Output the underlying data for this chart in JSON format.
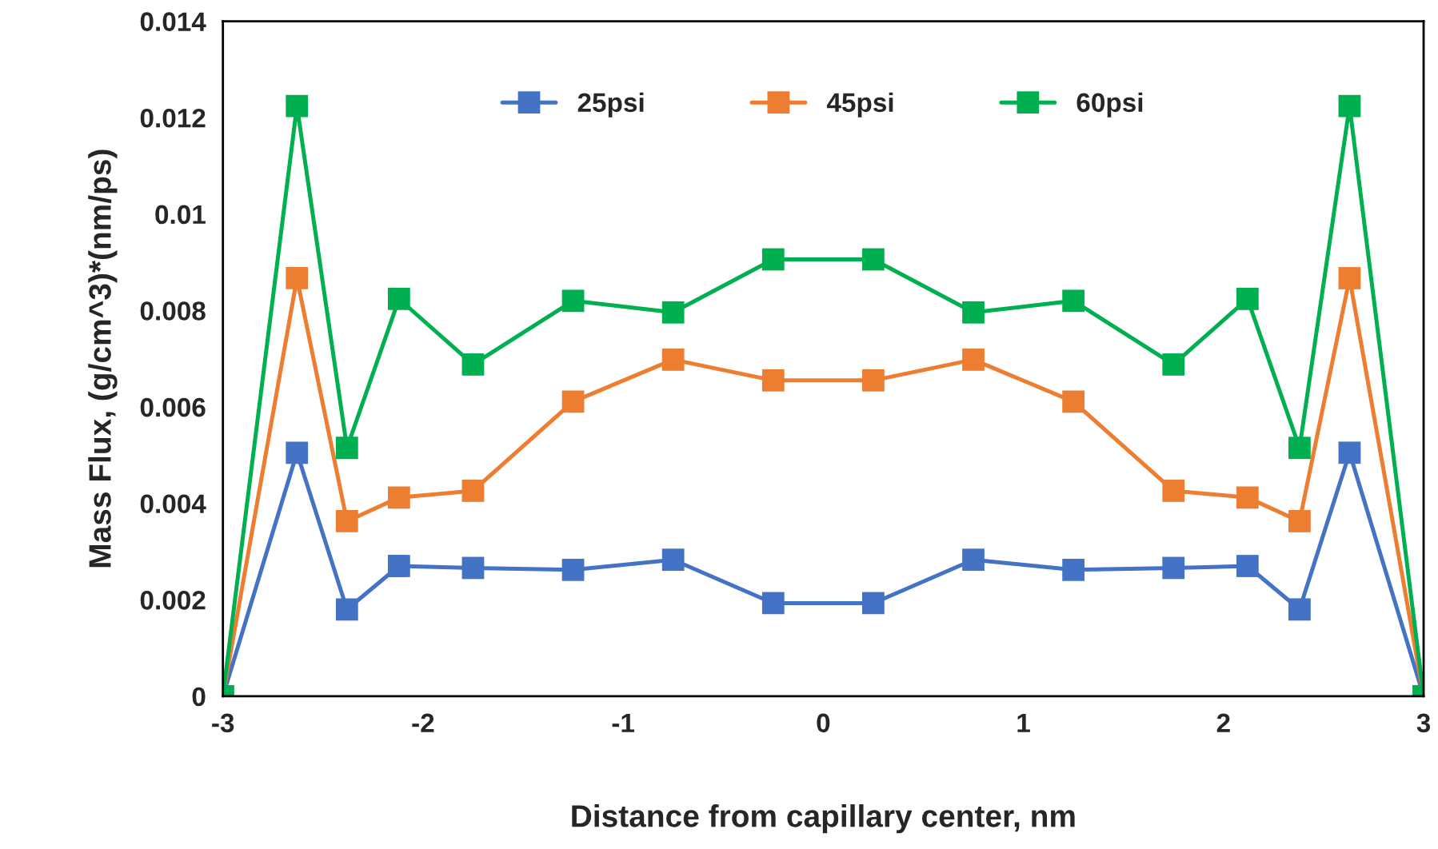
{
  "chart_data": {
    "type": "line",
    "xlabel": "Distance from capillary center, nm",
    "ylabel": "Mass Flux, (g/cm^3)*(nm/ps)",
    "x": [
      -3,
      -2.63,
      -2.38,
      -2.12,
      -1.75,
      -1.25,
      -0.75,
      -0.25,
      0.25,
      0.75,
      1.25,
      1.75,
      2.12,
      2.38,
      2.63,
      3
    ],
    "series": [
      {
        "name": "25psi",
        "color": "#4472c4",
        "values": [
          0,
          0.00505,
          0.0018,
          0.0027,
          0.00266,
          0.00262,
          0.00283,
          0.00193,
          0.00193,
          0.00283,
          0.00262,
          0.00266,
          0.0027,
          0.0018,
          0.00505,
          0
        ]
      },
      {
        "name": "45psi",
        "color": "#ed7d31",
        "values": [
          0,
          0.00867,
          0.00363,
          0.00412,
          0.00426,
          0.00611,
          0.00698,
          0.00655,
          0.00655,
          0.00698,
          0.00611,
          0.00426,
          0.00412,
          0.00363,
          0.00867,
          0
        ]
      },
      {
        "name": "60psi",
        "color": "#00b050",
        "values": [
          0,
          0.01224,
          0.00515,
          0.00824,
          0.00688,
          0.0082,
          0.00796,
          0.00906,
          0.00906,
          0.00796,
          0.0082,
          0.00688,
          0.00824,
          0.00515,
          0.01224,
          0
        ]
      }
    ],
    "xlim": [
      -3,
      3
    ],
    "xticks": [
      -3,
      -2,
      -1,
      0,
      1,
      2,
      3
    ],
    "ylim": [
      0,
      0.014
    ],
    "yticks": [
      {
        "value": 0,
        "label": "0"
      },
      0.002,
      0.004,
      0.006,
      0.008,
      0.01,
      0.012,
      0.014
    ],
    "marker": "square",
    "line_style": "solid",
    "legend": "top",
    "grid": false
  }
}
